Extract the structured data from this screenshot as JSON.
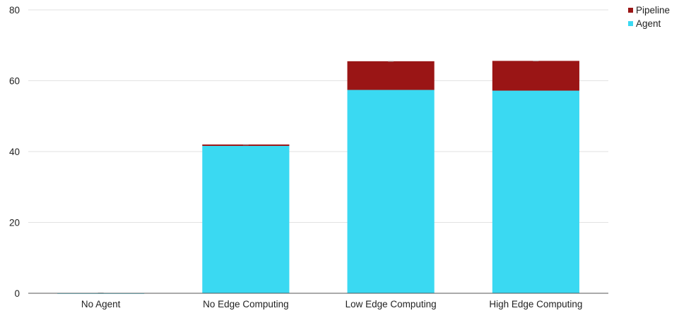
{
  "chart_data": {
    "type": "bar",
    "stacked": true,
    "title": "",
    "xlabel": "",
    "ylabel": "",
    "ylim": [
      0,
      80
    ],
    "yticks": [
      0,
      20,
      40,
      60,
      80
    ],
    "grid": true,
    "legend_position": "top-right",
    "categories": [
      "No Agent",
      "No Edge Computing",
      "Low Edge Computing",
      "High Edge Computing"
    ],
    "series": [
      {
        "name": "Agent",
        "color": "#3ad9f2",
        "values": [
          0,
          41.6,
          57.4,
          57.2
        ]
      },
      {
        "name": "Pipeline",
        "color": "#9a1515",
        "values": [
          0.1,
          0.4,
          8.1,
          8.4
        ]
      }
    ]
  }
}
